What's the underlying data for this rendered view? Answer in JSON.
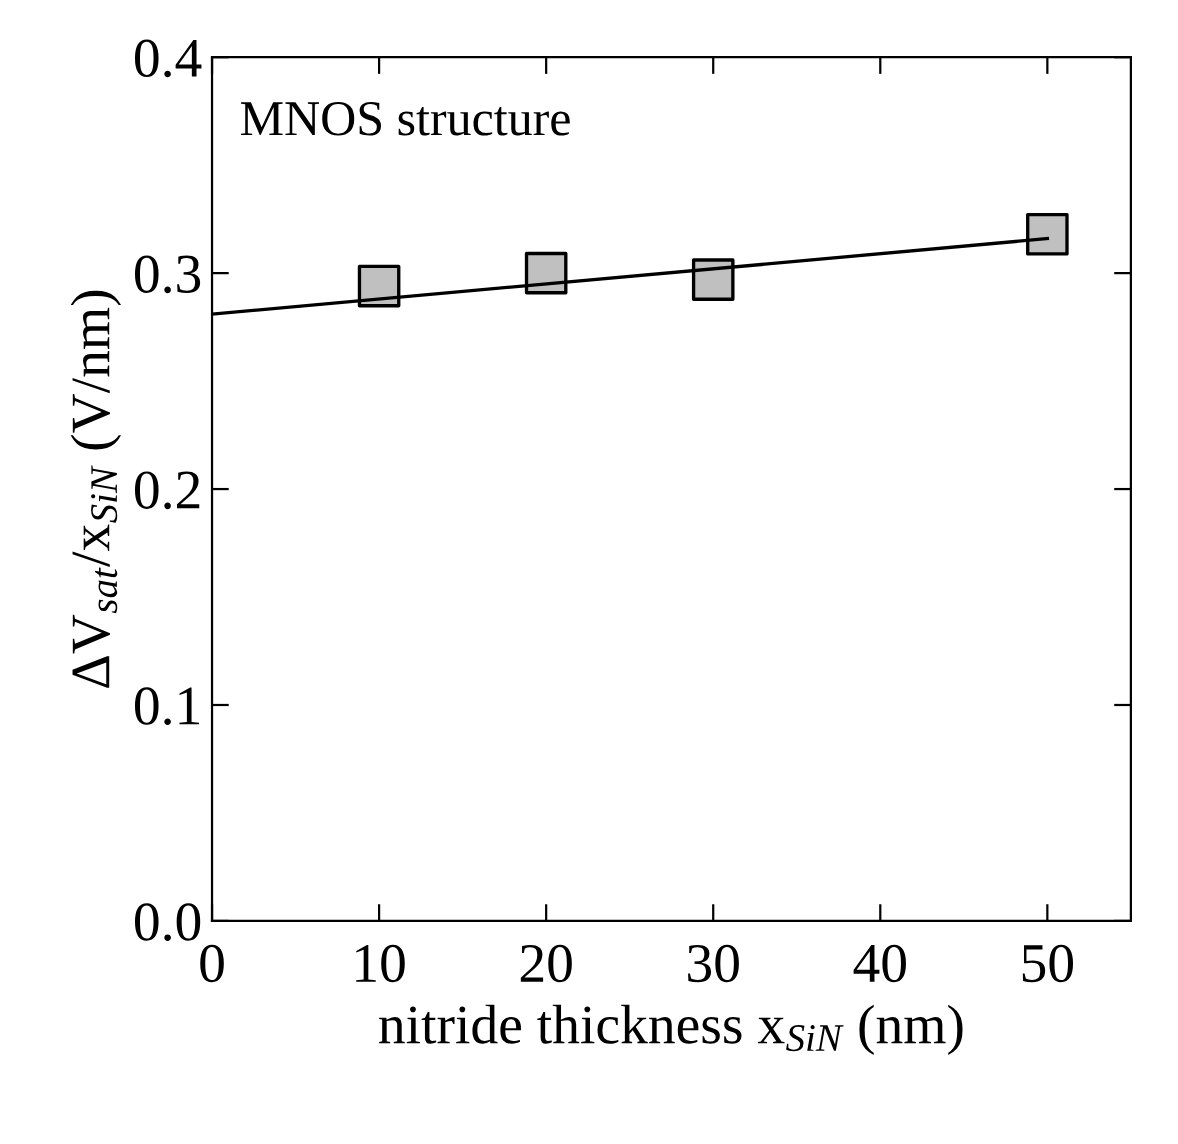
{
  "chart_data": {
    "type": "scatter",
    "xlabel": "nitride thickness x$_{SiN}$ (nm)",
    "ylabel": "ΔV$_{sat}$/x$_{SiN}$ (V/nm)",
    "annotations": [
      "MNOS structure"
    ],
    "series": [
      {
        "color": "#c0c0c0",
        "marker": "square",
        "x": [
          10,
          20,
          30,
          50
        ],
        "values": [
          0.294,
          0.3,
          0.297,
          0.318
        ]
      },
      {
        "type": "line",
        "color": "#000000",
        "marker": "none",
        "line_style": "solid",
        "x": [
          0,
          50
        ],
        "values": [
          0.281,
          0.316
        ]
      }
    ],
    "xlim": [
      0,
      55
    ],
    "ylim": [
      0,
      0.4
    ],
    "xticks": [
      0,
      10,
      20,
      30,
      40,
      50
    ],
    "yticks": [
      {
        "value": 0,
        "label": "0.0"
      },
      {
        "value": 0.1,
        "label": "0.1"
      },
      {
        "value": 0.2,
        "label": "0.2"
      },
      {
        "value": 0.3,
        "label": "0.3"
      },
      {
        "value": 0.4,
        "label": "0.4"
      }
    ],
    "grid": false,
    "legend": false
  }
}
